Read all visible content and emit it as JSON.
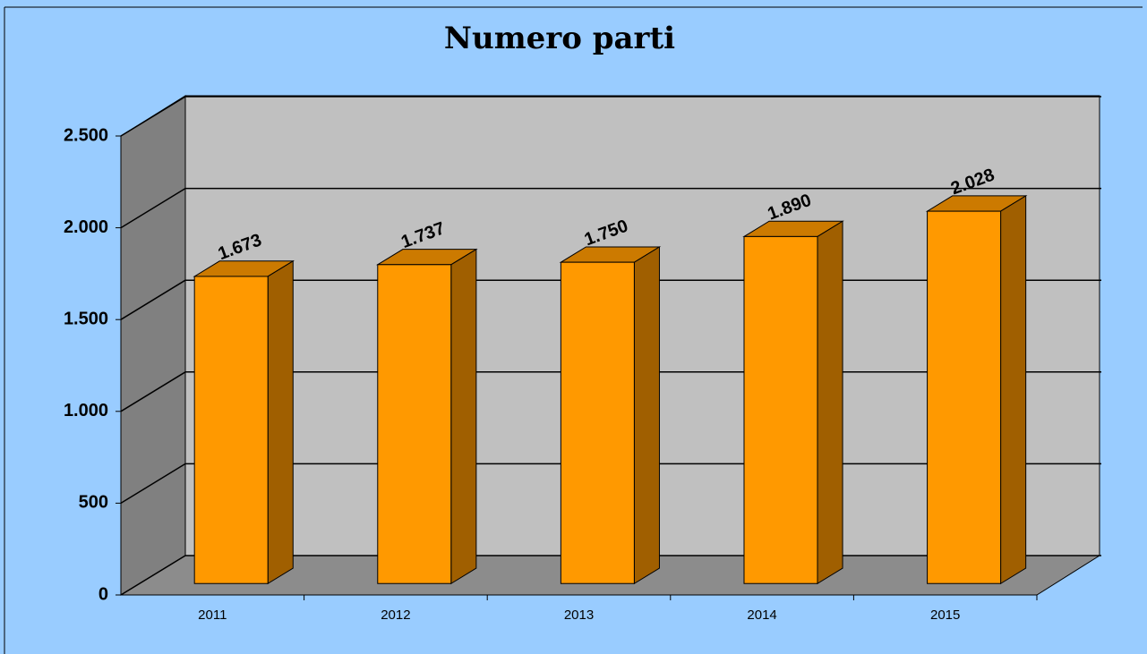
{
  "chart_data": {
    "type": "bar3d",
    "title": "Numero parti",
    "categories": [
      "2011",
      "2012",
      "2013",
      "2014",
      "2015"
    ],
    "values": [
      1673,
      1737,
      1750,
      1890,
      2028
    ],
    "value_labels": [
      "1.673",
      "1.737",
      "1.750",
      "1.890",
      "2.028"
    ],
    "color": "#ff9900",
    "ylim": [
      0,
      2500
    ],
    "yticks": [
      0,
      500,
      {
        "value": 1000,
        "label": "1.000"
      },
      {
        "value": 1500,
        "label": "1.500"
      },
      {
        "value": 2000,
        "label": "2.000"
      },
      {
        "value": 2500,
        "label": "2.500"
      }
    ],
    "grid": true
  }
}
